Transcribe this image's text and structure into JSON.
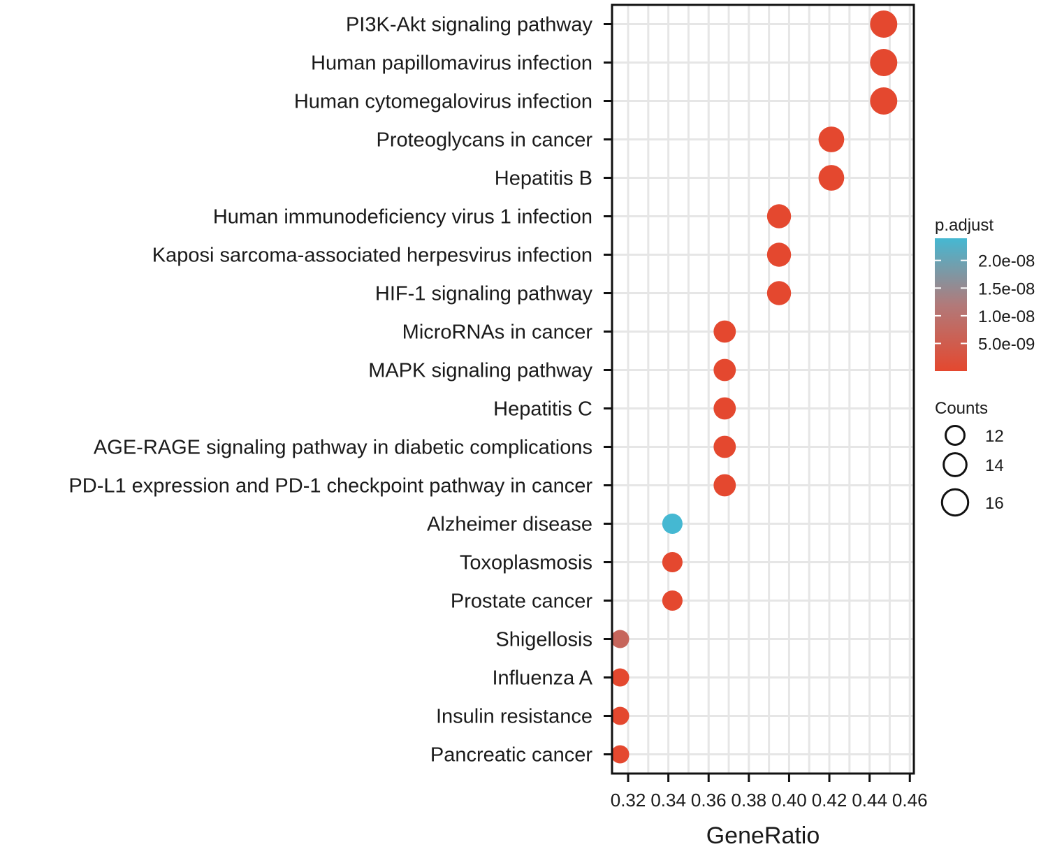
{
  "chart_data": {
    "type": "scatter",
    "xlabel": "GeneRatio",
    "ylabel": "",
    "xlim": [
      0.312,
      0.462
    ],
    "x_ticks": [
      "0.32",
      "0.34",
      "0.36",
      "0.38",
      "0.40",
      "0.42",
      "0.44",
      "0.46"
    ],
    "grid": true,
    "categories": [
      "PI3K-Akt signaling pathway",
      "Human papillomavirus infection",
      "Human cytomegalovirus infection",
      "Proteoglycans in cancer",
      "Hepatitis B",
      "Human immunodeficiency virus 1 infection",
      "Kaposi sarcoma-associated herpesvirus infection",
      "HIF-1 signaling pathway",
      "MicroRNAs in cancer",
      "MAPK signaling pathway",
      "Hepatitis C",
      "AGE-RAGE signaling pathway in diabetic complications",
      "PD-L1 expression and PD-1 checkpoint pathway in cancer",
      "Alzheimer disease",
      "Toxoplasmosis",
      "Prostate cancer",
      "Shigellosis",
      "Influenza A",
      "Insulin resistance",
      "Pancreatic cancer"
    ],
    "points": [
      {
        "term": "PI3K-Akt signaling pathway",
        "gene_ratio": 0.447,
        "count": 17,
        "p_adjust": 1e-11
      },
      {
        "term": "Human papillomavirus infection",
        "gene_ratio": 0.447,
        "count": 17,
        "p_adjust": 1e-11
      },
      {
        "term": "Human cytomegalovirus infection",
        "gene_ratio": 0.447,
        "count": 17,
        "p_adjust": 1e-11
      },
      {
        "term": "Proteoglycans in cancer",
        "gene_ratio": 0.421,
        "count": 16,
        "p_adjust": 1e-11
      },
      {
        "term": "Hepatitis B",
        "gene_ratio": 0.421,
        "count": 16,
        "p_adjust": 1e-11
      },
      {
        "term": "Human immunodeficiency virus 1 infection",
        "gene_ratio": 0.395,
        "count": 15,
        "p_adjust": 1e-11
      },
      {
        "term": "Kaposi sarcoma-associated herpesvirus infection",
        "gene_ratio": 0.395,
        "count": 15,
        "p_adjust": 1e-11
      },
      {
        "term": "HIF-1 signaling pathway",
        "gene_ratio": 0.395,
        "count": 15,
        "p_adjust": 1e-11
      },
      {
        "term": "MicroRNAs in cancer",
        "gene_ratio": 0.368,
        "count": 14,
        "p_adjust": 1e-11
      },
      {
        "term": "MAPK signaling pathway",
        "gene_ratio": 0.368,
        "count": 14,
        "p_adjust": 1e-11
      },
      {
        "term": "Hepatitis C",
        "gene_ratio": 0.368,
        "count": 14,
        "p_adjust": 1e-11
      },
      {
        "term": "AGE-RAGE signaling pathway in diabetic complications",
        "gene_ratio": 0.368,
        "count": 14,
        "p_adjust": 1e-11
      },
      {
        "term": "PD-L1 expression and PD-1 checkpoint pathway in cancer",
        "gene_ratio": 0.368,
        "count": 14,
        "p_adjust": 1e-11
      },
      {
        "term": "Alzheimer disease",
        "gene_ratio": 0.342,
        "count": 13,
        "p_adjust": 2.4e-08
      },
      {
        "term": "Toxoplasmosis",
        "gene_ratio": 0.342,
        "count": 13,
        "p_adjust": 1e-11
      },
      {
        "term": "Prostate cancer",
        "gene_ratio": 0.342,
        "count": 13,
        "p_adjust": 1e-11
      },
      {
        "term": "Shigellosis",
        "gene_ratio": 0.316,
        "count": 12,
        "p_adjust": 7e-09
      },
      {
        "term": "Influenza A",
        "gene_ratio": 0.316,
        "count": 12,
        "p_adjust": 1e-11
      },
      {
        "term": "Insulin resistance",
        "gene_ratio": 0.316,
        "count": 12,
        "p_adjust": 1e-11
      },
      {
        "term": "Pancreatic cancer",
        "gene_ratio": 0.316,
        "count": 12,
        "p_adjust": 1e-11
      }
    ],
    "legend": {
      "color_title": "p.adjust",
      "color_range": [
        1e-11,
        2.4e-08
      ],
      "color_low": "#e4482f",
      "color_high": "#45b8d2",
      "color_ticks": [
        {
          "value": 2e-08,
          "label": "2.0e-08"
        },
        {
          "value": 1.5e-08,
          "label": "1.5e-08"
        },
        {
          "value": 1e-08,
          "label": "1.0e-08"
        },
        {
          "value": 5e-09,
          "label": "5.0e-09"
        }
      ],
      "size_title": "Counts",
      "size_values": [
        12,
        14,
        16
      ],
      "size_labels": [
        "12",
        "14",
        "16"
      ],
      "placement": "right"
    }
  }
}
